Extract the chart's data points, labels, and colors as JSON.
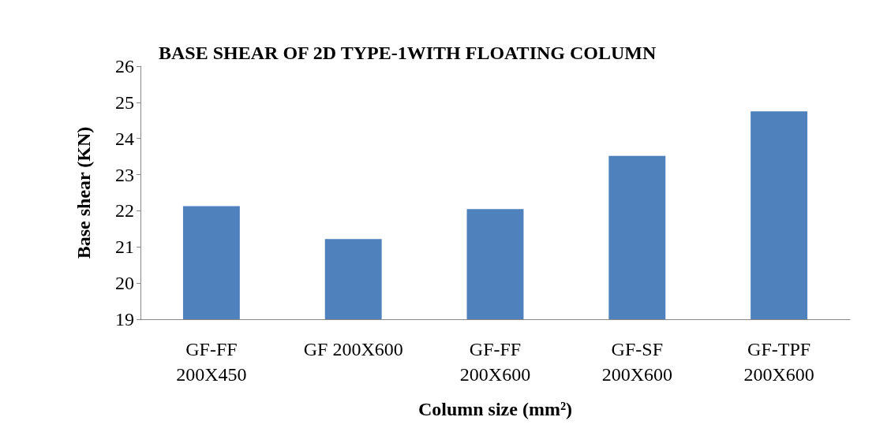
{
  "chart_data": {
    "type": "bar",
    "title": "BASE SHEAR OF 2D TYPE-1WITH FLOATING COLUMN",
    "xlabel": "Column size (mm²)",
    "ylabel": "Base shear (KN)",
    "categories": [
      "GF-FF\n200X450",
      "GF 200X600",
      "GF-FF\n200X600",
      "GF-SF\n200X600",
      "GF-TPF\n200X600"
    ],
    "values": [
      22.13,
      21.22,
      22.05,
      23.52,
      24.75
    ],
    "color": "#4f81bd",
    "ylim": [
      19,
      26
    ],
    "yticks": [
      19,
      20,
      21,
      22,
      23,
      24,
      25,
      26
    ]
  }
}
